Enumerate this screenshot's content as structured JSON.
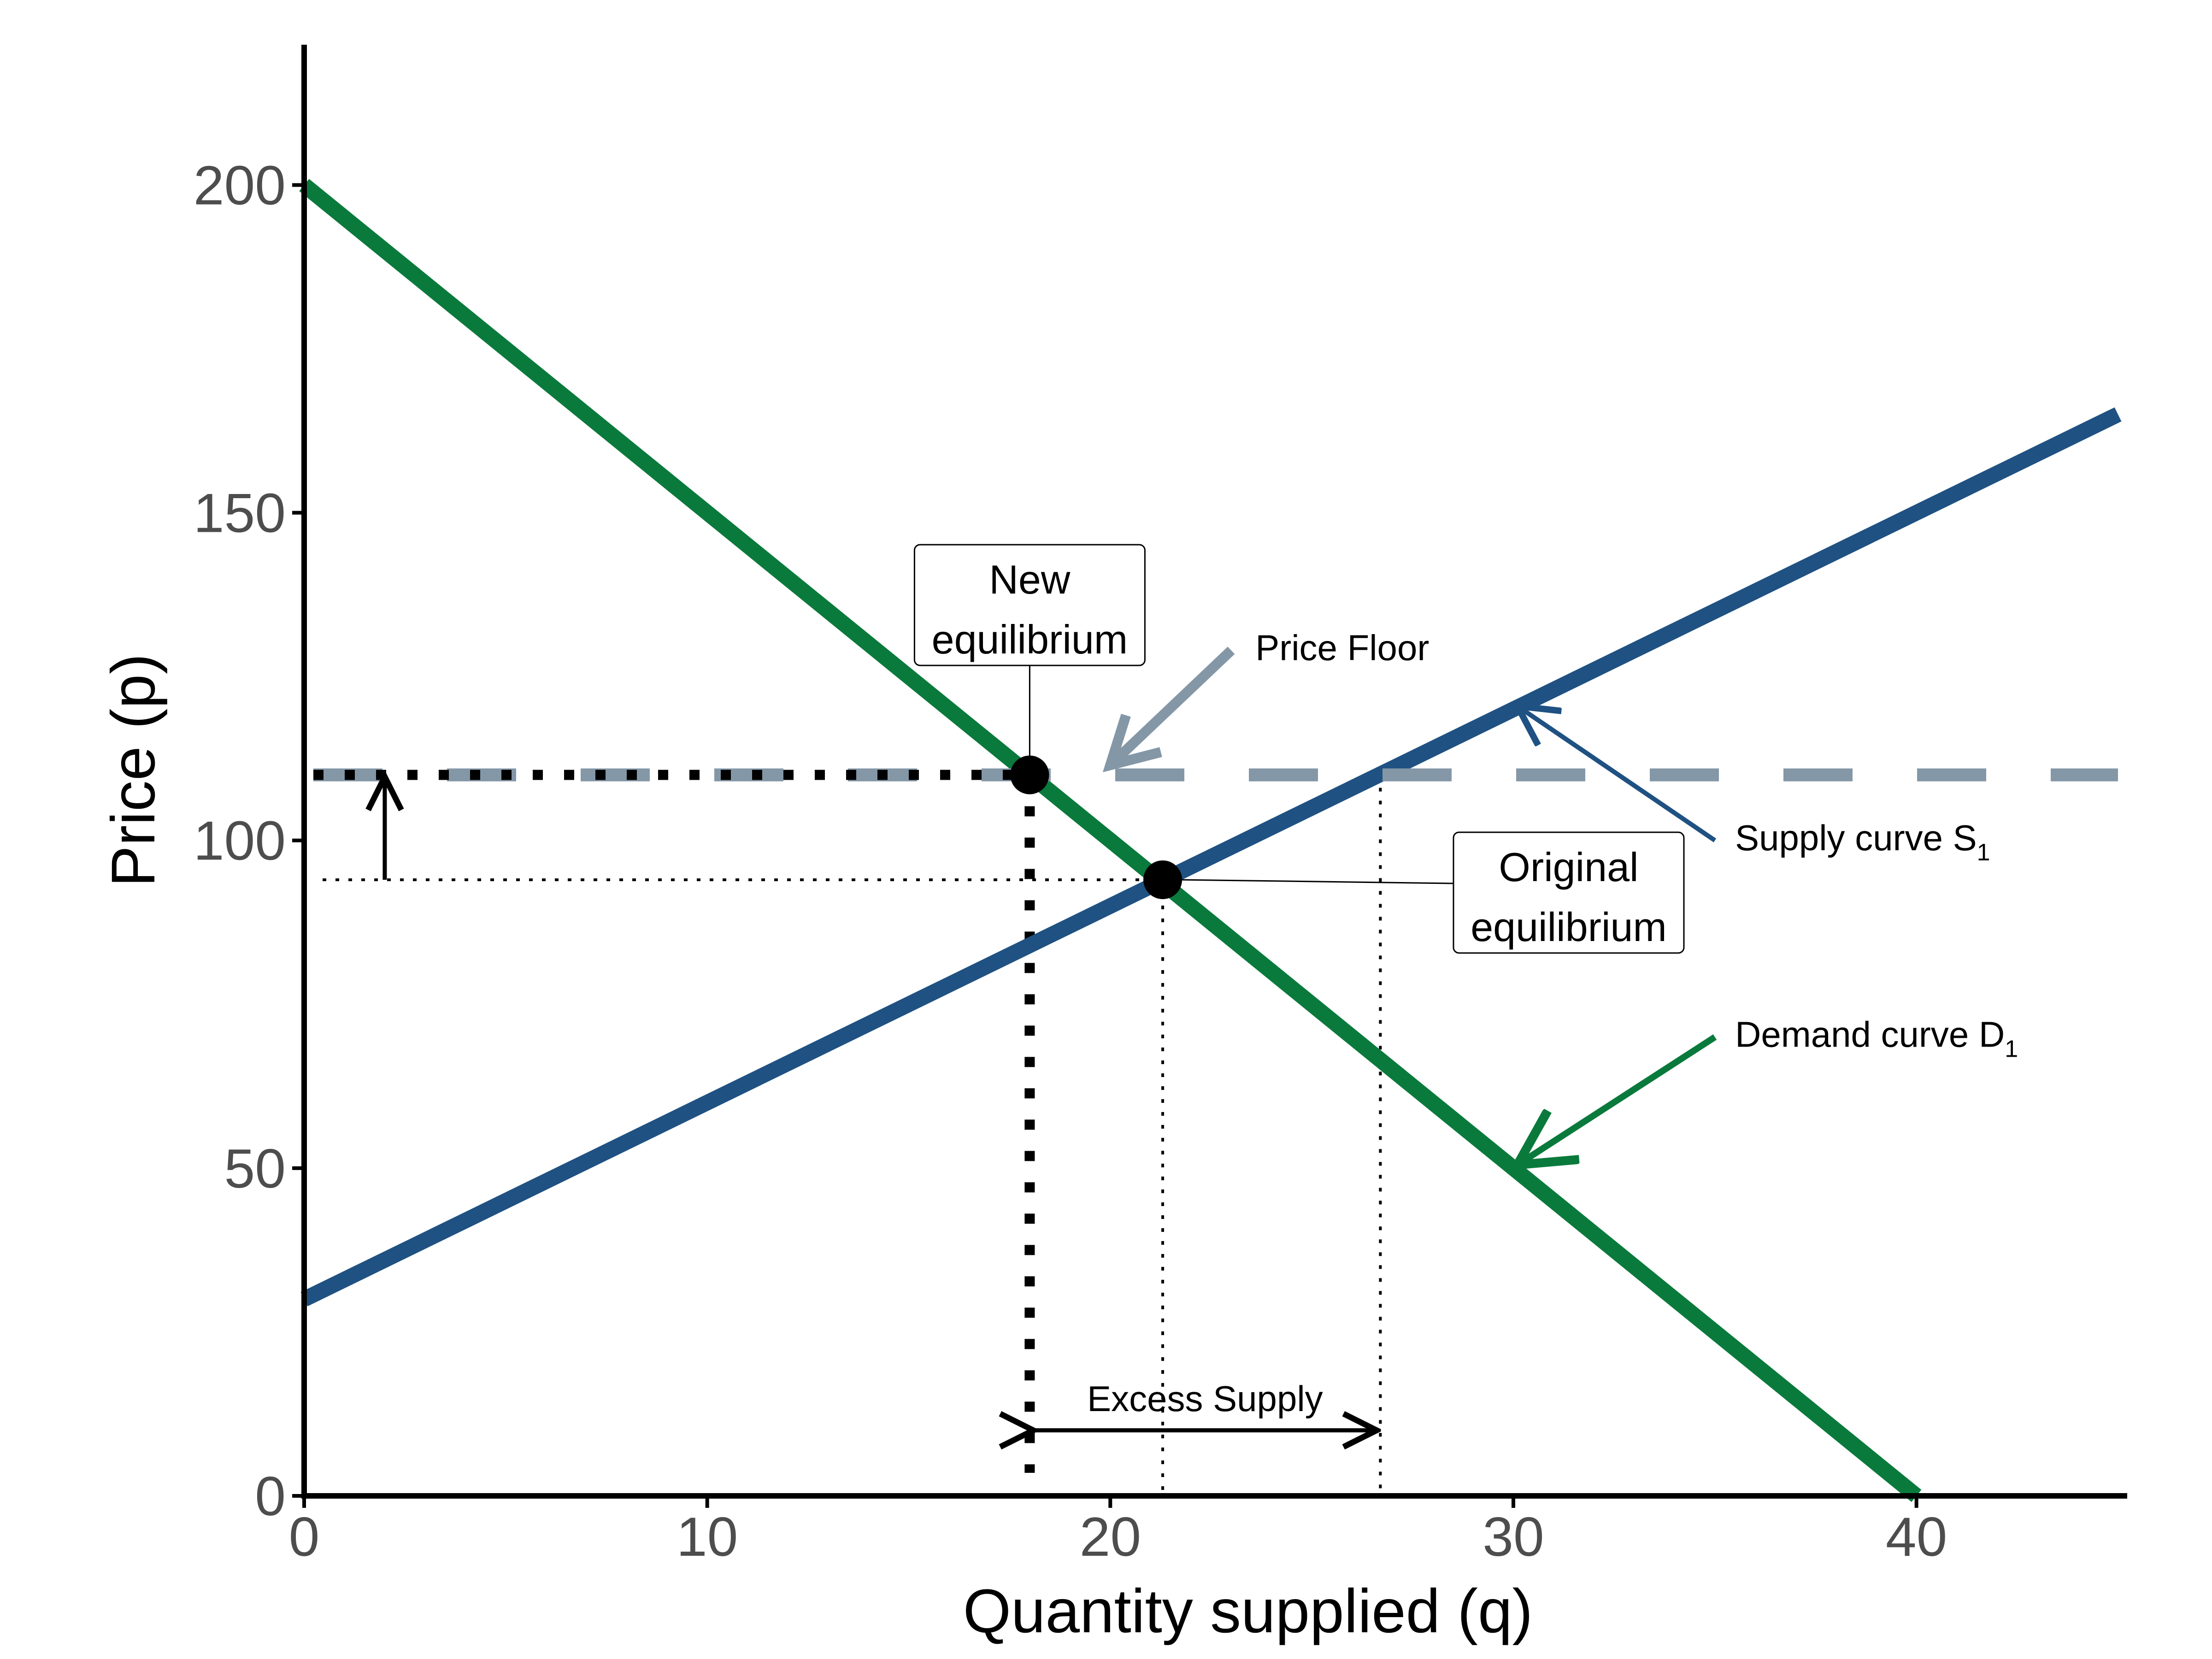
{
  "chart_data": {
    "type": "line",
    "title": "",
    "xlabel": "Quantity supplied (q)",
    "ylabel": "Price (p)",
    "xlim": [
      0,
      45
    ],
    "ylim": [
      0,
      220
    ],
    "x_ticks": [
      0,
      10,
      20,
      30,
      40
    ],
    "y_ticks": [
      0,
      50,
      100,
      150,
      200
    ],
    "grid": false,
    "series": [
      {
        "name": "Supply curve S",
        "subscript": "1",
        "color": "#1f5182",
        "x": [
          0,
          45
        ],
        "y": [
          30,
          165
        ]
      },
      {
        "name": "Demand curve D",
        "subscript": "1",
        "color": "#0a7a3c",
        "x": [
          0,
          40
        ],
        "y": [
          200,
          0
        ]
      }
    ],
    "price_floor": {
      "label": "Price Floor",
      "value": 110,
      "color": "#8497a7"
    },
    "original_equilibrium": {
      "label_line1": "Original",
      "label_line2": "equilibrium",
      "q": 21.3,
      "p": 94
    },
    "new_equilibrium": {
      "label_line1": "New",
      "label_line2": "equilibrium",
      "q": 18,
      "p": 110
    },
    "floor_supply_q": 26.7,
    "excess_supply": {
      "label": "Excess Supply",
      "from_q": 18,
      "to_q": 26.7,
      "at_p": 10
    },
    "price_rise_arrow": {
      "q": 2,
      "from_p": 94,
      "to_p": 110
    }
  }
}
